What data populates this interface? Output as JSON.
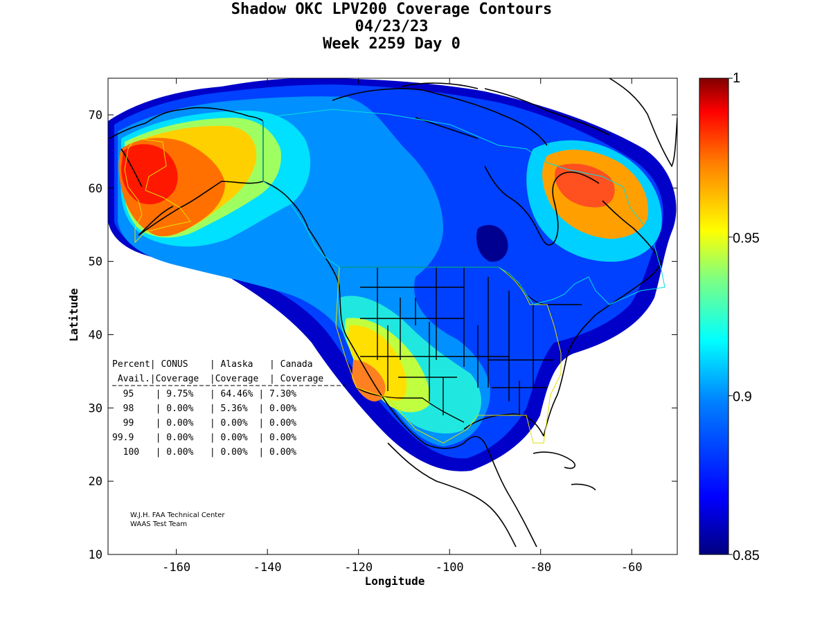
{
  "title": {
    "line1": "Shadow OKC LPV200 Coverage Contours",
    "line2": "04/23/23",
    "line3": "Week 2259 Day 0"
  },
  "axes": {
    "xlabel": "Longitude",
    "ylabel": "Latitude",
    "xticks": [
      "-160",
      "-140",
      "-120",
      "-100",
      "-80",
      "-60"
    ],
    "yticks": [
      "70",
      "60",
      "50",
      "40",
      "30",
      "20",
      "10"
    ],
    "lon_range": [
      -175,
      -50
    ],
    "lat_range": [
      10,
      75
    ]
  },
  "colorbar": {
    "labels": [
      "1",
      "0.95",
      "0.9",
      "0.85"
    ],
    "range": [
      0.85,
      1.0
    ],
    "colors": [
      "#800000",
      "#ff0000",
      "#ff8000",
      "#ffff00",
      "#80ff80",
      "#00ffff",
      "#0080ff",
      "#0000ff",
      "#000080"
    ]
  },
  "table": {
    "header1": [
      "Percent",
      "CONUS",
      "Alaska",
      "Canada"
    ],
    "header2": [
      "Avail.",
      "Coverage",
      "Coverage",
      "Coverage"
    ],
    "rows": [
      [
        "95",
        "9.75%",
        "64.46%",
        "7.30%"
      ],
      [
        "98",
        "0.00%",
        "5.36%",
        "0.00%"
      ],
      [
        "99",
        "0.00%",
        "0.00%",
        "0.00%"
      ],
      [
        "99.9",
        "0.00%",
        "0.00%",
        "0.00%"
      ],
      [
        "100",
        "0.00%",
        "0.00%",
        "0.00%"
      ]
    ]
  },
  "credit": {
    "line1": "W.J.H. FAA Technical Center",
    "line2": "WAAS Test Team"
  }
}
